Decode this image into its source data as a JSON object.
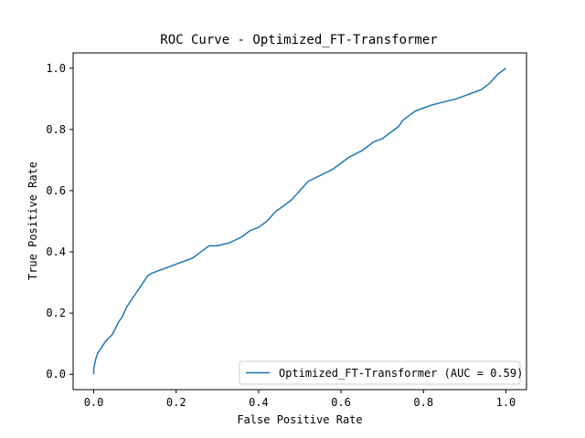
{
  "chart_data": {
    "type": "line",
    "title": "ROC Curve - Optimized_FT-Transformer",
    "xlabel": "False Positive Rate",
    "ylabel": "True Positive Rate",
    "xlim": [
      -0.05,
      1.05
    ],
    "ylim": [
      -0.05,
      1.05
    ],
    "xticks": [
      0.0,
      0.2,
      0.4,
      0.6,
      0.8,
      1.0
    ],
    "yticks": [
      0.0,
      0.2,
      0.4,
      0.6,
      0.8,
      1.0
    ],
    "xtick_labels": [
      "0.0",
      "0.2",
      "0.4",
      "0.6",
      "0.8",
      "1.0"
    ],
    "ytick_labels": [
      "0.0",
      "0.2",
      "0.4",
      "0.6",
      "0.8",
      "1.0"
    ],
    "grid": false,
    "legend_position": "lower-right",
    "series": [
      {
        "name": "Optimized_FT-Transformer (AUC = 0.59)",
        "color": "#1f77b4",
        "x": [
          0.0,
          0.0,
          0.005,
          0.01,
          0.02,
          0.03,
          0.045,
          0.06,
          0.07,
          0.08,
          0.09,
          0.1,
          0.11,
          0.12,
          0.13,
          0.14,
          0.16,
          0.18,
          0.2,
          0.22,
          0.24,
          0.26,
          0.28,
          0.3,
          0.33,
          0.36,
          0.38,
          0.4,
          0.42,
          0.44,
          0.46,
          0.48,
          0.5,
          0.52,
          0.55,
          0.58,
          0.6,
          0.62,
          0.65,
          0.68,
          0.7,
          0.72,
          0.74,
          0.75,
          0.78,
          0.8,
          0.82,
          0.85,
          0.88,
          0.9,
          0.92,
          0.94,
          0.96,
          0.98,
          1.0
        ],
        "y": [
          0.0,
          0.02,
          0.05,
          0.07,
          0.09,
          0.11,
          0.13,
          0.17,
          0.19,
          0.22,
          0.24,
          0.26,
          0.28,
          0.3,
          0.32,
          0.33,
          0.34,
          0.35,
          0.36,
          0.37,
          0.38,
          0.4,
          0.42,
          0.42,
          0.43,
          0.45,
          0.47,
          0.48,
          0.5,
          0.53,
          0.55,
          0.57,
          0.6,
          0.63,
          0.65,
          0.67,
          0.69,
          0.71,
          0.73,
          0.76,
          0.77,
          0.79,
          0.81,
          0.83,
          0.86,
          0.87,
          0.88,
          0.89,
          0.9,
          0.91,
          0.92,
          0.93,
          0.95,
          0.98,
          1.0
        ]
      }
    ]
  }
}
